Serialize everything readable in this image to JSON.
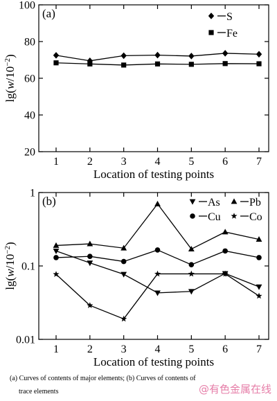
{
  "chart_data": [
    {
      "type": "line",
      "panel_label": "(a)",
      "x": [
        1,
        2,
        3,
        4,
        5,
        6,
        7
      ],
      "xlabel": "Location of testing points",
      "ylabel": "lg(w/10^-2)",
      "ylim": [
        20,
        100
      ],
      "yscale": "linear",
      "yticks": [
        "20",
        "40",
        "60",
        "80",
        "100"
      ],
      "xticks": [
        "1",
        "2",
        "3",
        "4",
        "5",
        "6",
        "7"
      ],
      "legend_position": "top-right",
      "series": [
        {
          "name": "S",
          "marker": "diamond",
          "values": [
            72.5,
            69.5,
            72.3,
            72.6,
            72.1,
            73.6,
            73.1
          ]
        },
        {
          "name": "Fe",
          "marker": "square",
          "values": [
            68.4,
            67.8,
            67.2,
            67.8,
            67.6,
            68.0,
            67.9
          ]
        }
      ]
    },
    {
      "type": "line",
      "panel_label": "(b)",
      "x": [
        1,
        2,
        3,
        4,
        5,
        6,
        7
      ],
      "xlabel": "Location of testing points",
      "ylabel": "lg(w/10^-2)",
      "ylim": [
        0.01,
        1
      ],
      "yscale": "log",
      "yticks": [
        "0.01",
        "0.1",
        "1"
      ],
      "xticks": [
        "1",
        "2",
        "3",
        "4",
        "5",
        "6",
        "7"
      ],
      "legend_position": "top-right",
      "series": [
        {
          "name": "As",
          "marker": "triangle-down",
          "values": [
            0.16,
            0.11,
            0.077,
            0.043,
            0.045,
            0.079,
            0.052
          ]
        },
        {
          "name": "Pb",
          "marker": "triangle-up",
          "values": [
            0.19,
            0.2,
            0.175,
            0.7,
            0.17,
            0.29,
            0.23
          ]
        },
        {
          "name": "Cu",
          "marker": "circle",
          "values": [
            0.13,
            0.135,
            0.115,
            0.165,
            0.104,
            0.16,
            0.13
          ]
        },
        {
          "name": "Co",
          "marker": "star",
          "values": [
            0.077,
            0.029,
            0.019,
            0.078,
            0.078,
            0.078,
            0.039
          ]
        }
      ]
    }
  ],
  "caption": {
    "line1": "(a)  Curves of contents of major elements; (b) Curves of contents of",
    "line2": "trace elements"
  },
  "watermark": "@有色金属在线"
}
